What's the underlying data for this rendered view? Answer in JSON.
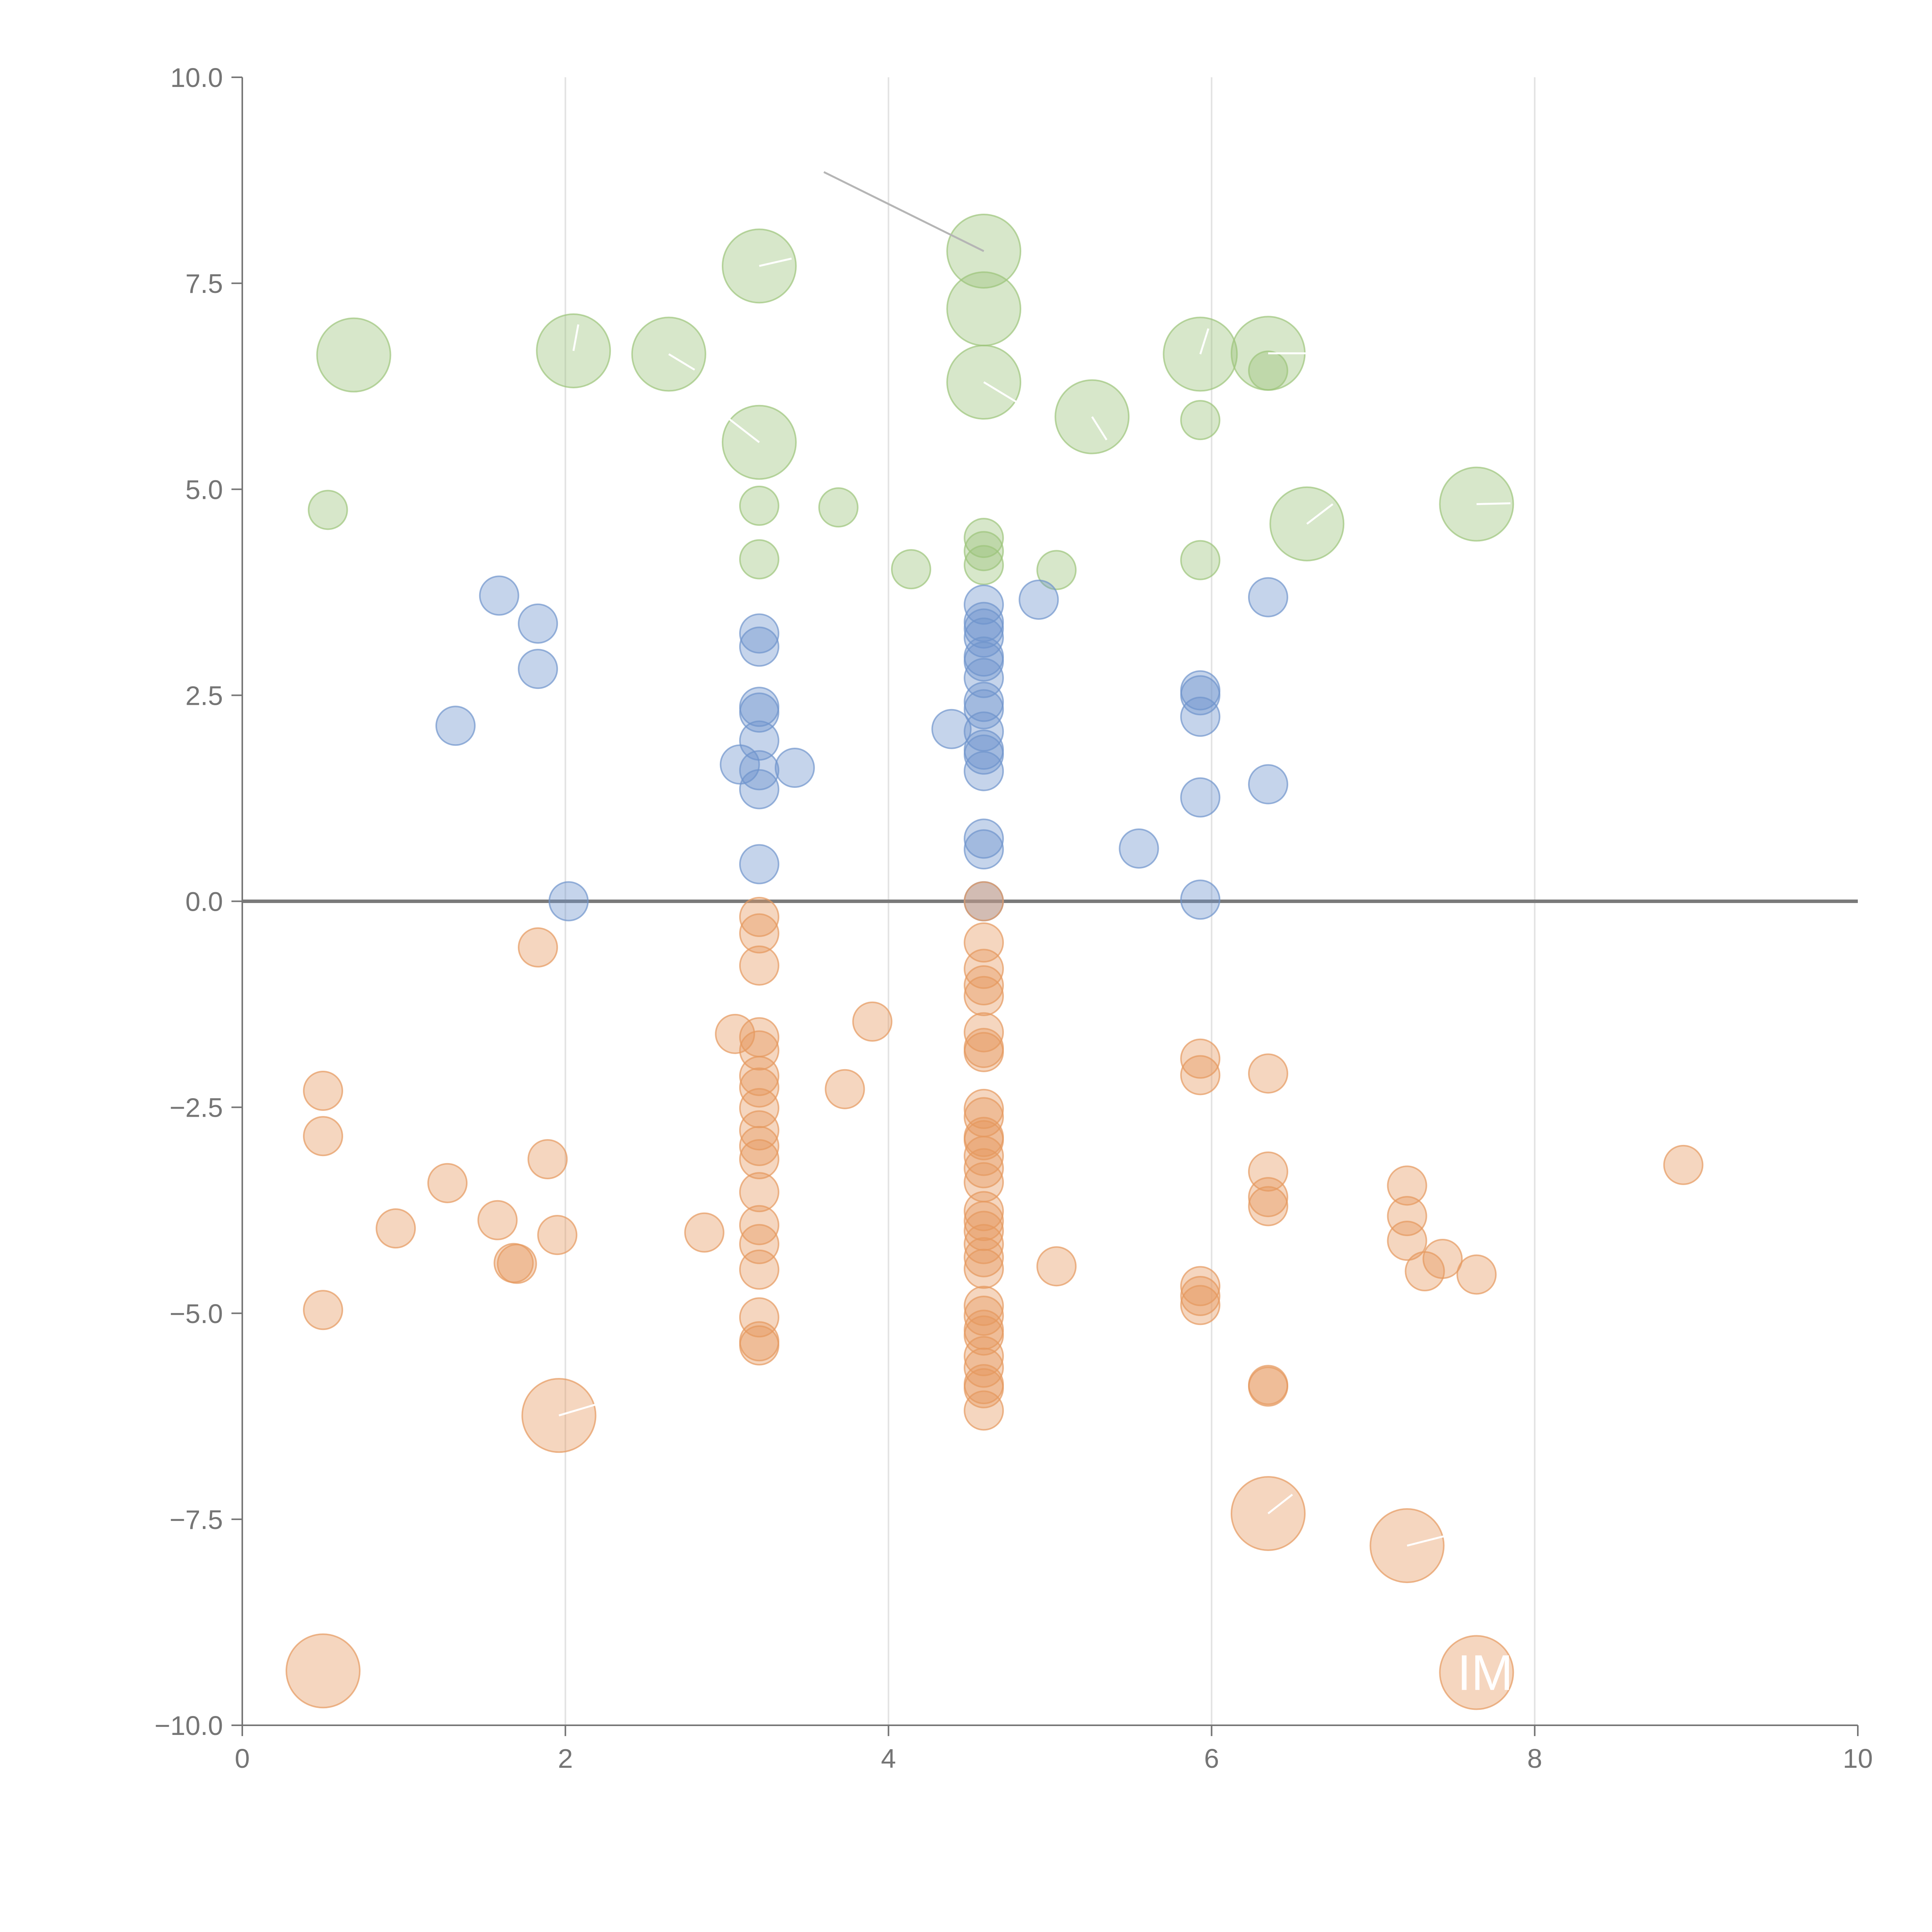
{
  "chart_data": {
    "type": "scatter",
    "title": "",
    "xlabel": "",
    "ylabel": "",
    "xlim": [
      0,
      10
    ],
    "ylim": [
      -10,
      10
    ],
    "x_ticks": [
      "0",
      "2",
      "4",
      "6",
      "8",
      "10"
    ],
    "y_ticks": [
      "10.0",
      "7.5",
      "5.0",
      "2.5",
      "0.0",
      "−2.5",
      "−5.0",
      "−7.5",
      "−10.0"
    ],
    "grid": "vertical",
    "zero_line": true,
    "colors": {
      "green": "#9cc47a",
      "blue": "#6f94cc",
      "orange": "#e5995e",
      "axis": "#757575",
      "leader": "#b5b5b5"
    },
    "series": [
      {
        "name": "green",
        "color": "#9cc47a",
        "points": [
          {
            "x": 0.69,
            "y": 6.63,
            "size": "large"
          },
          {
            "x": 2.05,
            "y": 6.68,
            "size": "large"
          },
          {
            "x": 2.64,
            "y": 6.64,
            "size": "large"
          },
          {
            "x": 3.2,
            "y": 7.71,
            "size": "large"
          },
          {
            "x": 3.2,
            "y": 5.57,
            "size": "large"
          },
          {
            "x": 4.59,
            "y": 7.89,
            "size": "large"
          },
          {
            "x": 4.59,
            "y": 7.19,
            "size": "large"
          },
          {
            "x": 4.59,
            "y": 6.3,
            "size": "large"
          },
          {
            "x": 5.26,
            "y": 5.88,
            "size": "large"
          },
          {
            "x": 5.93,
            "y": 6.64,
            "size": "large"
          },
          {
            "x": 6.35,
            "y": 6.65,
            "size": "large"
          },
          {
            "x": 6.59,
            "y": 4.58,
            "size": "large"
          },
          {
            "x": 7.64,
            "y": 4.82,
            "size": "large"
          },
          {
            "x": 0.53,
            "y": 4.75,
            "size": "small"
          },
          {
            "x": 3.2,
            "y": 4.8,
            "size": "small"
          },
          {
            "x": 3.2,
            "y": 4.15,
            "size": "small"
          },
          {
            "x": 3.69,
            "y": 4.78,
            "size": "small"
          },
          {
            "x": 4.14,
            "y": 4.03,
            "size": "small"
          },
          {
            "x": 4.59,
            "y": 4.41,
            "size": "small"
          },
          {
            "x": 4.59,
            "y": 4.25,
            "size": "small"
          },
          {
            "x": 4.59,
            "y": 4.08,
            "size": "small"
          },
          {
            "x": 5.04,
            "y": 4.02,
            "size": "small"
          },
          {
            "x": 5.93,
            "y": 5.84,
            "size": "small"
          },
          {
            "x": 5.93,
            "y": 4.14,
            "size": "small"
          },
          {
            "x": 6.35,
            "y": 6.44,
            "size": "small"
          }
        ]
      },
      {
        "name": "blue",
        "color": "#6f94cc",
        "points": [
          {
            "x": 1.59,
            "y": 3.71,
            "size": "small"
          },
          {
            "x": 1.83,
            "y": 3.37,
            "size": "small"
          },
          {
            "x": 1.83,
            "y": 2.82,
            "size": "small"
          },
          {
            "x": 1.32,
            "y": 2.13,
            "size": "small"
          },
          {
            "x": 2.02,
            "y": 0.0,
            "size": "small"
          },
          {
            "x": 3.2,
            "y": 3.25,
            "size": "small"
          },
          {
            "x": 3.2,
            "y": 3.09,
            "size": "small"
          },
          {
            "x": 3.2,
            "y": 2.36,
            "size": "small"
          },
          {
            "x": 3.2,
            "y": 2.29,
            "size": "small"
          },
          {
            "x": 3.2,
            "y": 1.95,
            "size": "small"
          },
          {
            "x": 3.08,
            "y": 1.66,
            "size": "small"
          },
          {
            "x": 3.2,
            "y": 1.59,
            "size": "small"
          },
          {
            "x": 3.42,
            "y": 1.62,
            "size": "small"
          },
          {
            "x": 3.2,
            "y": 1.36,
            "size": "small"
          },
          {
            "x": 3.2,
            "y": 0.45,
            "size": "small"
          },
          {
            "x": 4.39,
            "y": 2.09,
            "size": "small"
          },
          {
            "x": 4.59,
            "y": 3.6,
            "size": "small"
          },
          {
            "x": 4.59,
            "y": 3.39,
            "size": "small"
          },
          {
            "x": 4.59,
            "y": 3.31,
            "size": "small"
          },
          {
            "x": 4.59,
            "y": 3.2,
            "size": "small"
          },
          {
            "x": 4.59,
            "y": 2.97,
            "size": "small"
          },
          {
            "x": 4.59,
            "y": 2.91,
            "size": "small"
          },
          {
            "x": 4.59,
            "y": 2.71,
            "size": "small"
          },
          {
            "x": 4.59,
            "y": 2.42,
            "size": "small"
          },
          {
            "x": 4.59,
            "y": 2.33,
            "size": "small"
          },
          {
            "x": 4.59,
            "y": 2.06,
            "size": "small"
          },
          {
            "x": 4.59,
            "y": 1.84,
            "size": "small"
          },
          {
            "x": 4.59,
            "y": 1.78,
            "size": "small"
          },
          {
            "x": 4.59,
            "y": 1.58,
            "size": "small"
          },
          {
            "x": 4.59,
            "y": 0.76,
            "size": "small"
          },
          {
            "x": 4.59,
            "y": 0.63,
            "size": "small"
          },
          {
            "x": 4.59,
            "y": 0.0,
            "size": "small"
          },
          {
            "x": 4.93,
            "y": 3.66,
            "size": "small"
          },
          {
            "x": 5.55,
            "y": 0.64,
            "size": "small"
          },
          {
            "x": 5.93,
            "y": 2.56,
            "size": "small"
          },
          {
            "x": 5.93,
            "y": 2.5,
            "size": "small"
          },
          {
            "x": 5.93,
            "y": 2.24,
            "size": "small"
          },
          {
            "x": 5.93,
            "y": 1.26,
            "size": "small"
          },
          {
            "x": 5.93,
            "y": 0.02,
            "size": "small"
          },
          {
            "x": 6.35,
            "y": 3.69,
            "size": "small"
          },
          {
            "x": 6.35,
            "y": 1.42,
            "size": "small"
          }
        ]
      },
      {
        "name": "orange",
        "color": "#e5995e",
        "points": [
          {
            "x": 0.5,
            "y": -9.34,
            "size": "large"
          },
          {
            "x": 1.96,
            "y": -6.24,
            "size": "large"
          },
          {
            "x": 6.35,
            "y": -7.43,
            "size": "large"
          },
          {
            "x": 7.21,
            "y": -7.82,
            "size": "large"
          },
          {
            "x": 7.64,
            "y": -9.36,
            "size": "large"
          },
          {
            "x": 0.5,
            "y": -2.3,
            "size": "small"
          },
          {
            "x": 0.5,
            "y": -2.85,
            "size": "small"
          },
          {
            "x": 0.5,
            "y": -4.96,
            "size": "small"
          },
          {
            "x": 0.95,
            "y": -3.97,
            "size": "small"
          },
          {
            "x": 1.27,
            "y": -3.42,
            "size": "small"
          },
          {
            "x": 1.58,
            "y": -3.87,
            "size": "small"
          },
          {
            "x": 1.68,
            "y": -4.39,
            "size": "small"
          },
          {
            "x": 1.7,
            "y": -4.4,
            "size": "small"
          },
          {
            "x": 1.83,
            "y": -0.56,
            "size": "small"
          },
          {
            "x": 1.89,
            "y": -3.13,
            "size": "small"
          },
          {
            "x": 1.95,
            "y": -4.05,
            "size": "small"
          },
          {
            "x": 2.86,
            "y": -4.02,
            "size": "small"
          },
          {
            "x": 3.05,
            "y": -1.61,
            "size": "small"
          },
          {
            "x": 3.2,
            "y": -0.19,
            "size": "small"
          },
          {
            "x": 3.2,
            "y": -0.39,
            "size": "small"
          },
          {
            "x": 3.2,
            "y": -0.78,
            "size": "small"
          },
          {
            "x": 3.2,
            "y": -1.65,
            "size": "small"
          },
          {
            "x": 3.2,
            "y": -1.81,
            "size": "small"
          },
          {
            "x": 3.2,
            "y": -2.12,
            "size": "small"
          },
          {
            "x": 3.2,
            "y": -2.26,
            "size": "small"
          },
          {
            "x": 3.2,
            "y": -2.51,
            "size": "small"
          },
          {
            "x": 3.2,
            "y": -2.78,
            "size": "small"
          },
          {
            "x": 3.2,
            "y": -2.97,
            "size": "small"
          },
          {
            "x": 3.2,
            "y": -3.13,
            "size": "small"
          },
          {
            "x": 3.2,
            "y": -3.53,
            "size": "small"
          },
          {
            "x": 3.2,
            "y": -3.93,
            "size": "small"
          },
          {
            "x": 3.2,
            "y": -4.16,
            "size": "small"
          },
          {
            "x": 3.2,
            "y": -4.47,
            "size": "small"
          },
          {
            "x": 3.2,
            "y": -5.05,
            "size": "small"
          },
          {
            "x": 3.2,
            "y": -5.34,
            "size": "small"
          },
          {
            "x": 3.2,
            "y": -5.39,
            "size": "small"
          },
          {
            "x": 3.73,
            "y": -2.28,
            "size": "small"
          },
          {
            "x": 3.9,
            "y": -1.46,
            "size": "small"
          },
          {
            "x": 4.59,
            "y": 0.0,
            "size": "small"
          },
          {
            "x": 4.59,
            "y": -0.5,
            "size": "small"
          },
          {
            "x": 4.59,
            "y": -0.82,
            "size": "small"
          },
          {
            "x": 4.59,
            "y": -1.02,
            "size": "small"
          },
          {
            "x": 4.59,
            "y": -1.15,
            "size": "small"
          },
          {
            "x": 4.59,
            "y": -1.59,
            "size": "small"
          },
          {
            "x": 4.59,
            "y": -1.78,
            "size": "small"
          },
          {
            "x": 4.59,
            "y": -1.83,
            "size": "small"
          },
          {
            "x": 4.59,
            "y": -2.52,
            "size": "small"
          },
          {
            "x": 4.59,
            "y": -2.62,
            "size": "small"
          },
          {
            "x": 4.59,
            "y": -2.86,
            "size": "small"
          },
          {
            "x": 4.59,
            "y": -2.9,
            "size": "small"
          },
          {
            "x": 4.59,
            "y": -3.09,
            "size": "small"
          },
          {
            "x": 4.59,
            "y": -3.24,
            "size": "small"
          },
          {
            "x": 4.59,
            "y": -3.41,
            "size": "small"
          },
          {
            "x": 4.59,
            "y": -3.76,
            "size": "small"
          },
          {
            "x": 4.59,
            "y": -3.88,
            "size": "small"
          },
          {
            "x": 4.59,
            "y": -4.0,
            "size": "small"
          },
          {
            "x": 4.59,
            "y": -4.16,
            "size": "small"
          },
          {
            "x": 4.59,
            "y": -4.32,
            "size": "small"
          },
          {
            "x": 4.59,
            "y": -4.46,
            "size": "small"
          },
          {
            "x": 4.59,
            "y": -4.91,
            "size": "small"
          },
          {
            "x": 4.59,
            "y": -5.03,
            "size": "small"
          },
          {
            "x": 4.59,
            "y": -5.2,
            "size": "small"
          },
          {
            "x": 4.59,
            "y": -5.27,
            "size": "small"
          },
          {
            "x": 4.59,
            "y": -5.52,
            "size": "small"
          },
          {
            "x": 4.59,
            "y": -5.66,
            "size": "small"
          },
          {
            "x": 4.59,
            "y": -5.86,
            "size": "small"
          },
          {
            "x": 4.59,
            "y": -5.91,
            "size": "small"
          },
          {
            "x": 4.59,
            "y": -6.18,
            "size": "small"
          },
          {
            "x": 5.04,
            "y": -4.43,
            "size": "small"
          },
          {
            "x": 5.93,
            "y": -1.91,
            "size": "small"
          },
          {
            "x": 5.93,
            "y": -2.11,
            "size": "small"
          },
          {
            "x": 5.93,
            "y": -4.67,
            "size": "small"
          },
          {
            "x": 5.93,
            "y": -4.79,
            "size": "small"
          },
          {
            "x": 5.93,
            "y": -4.9,
            "size": "small"
          },
          {
            "x": 6.35,
            "y": -2.09,
            "size": "small"
          },
          {
            "x": 6.35,
            "y": -3.28,
            "size": "small"
          },
          {
            "x": 6.35,
            "y": -3.59,
            "size": "small"
          },
          {
            "x": 6.35,
            "y": -3.7,
            "size": "small"
          },
          {
            "x": 6.35,
            "y": -5.87,
            "size": "small"
          },
          {
            "x": 6.35,
            "y": -5.89,
            "size": "small"
          },
          {
            "x": 7.21,
            "y": -3.45,
            "size": "small"
          },
          {
            "x": 7.21,
            "y": -3.82,
            "size": "small"
          },
          {
            "x": 7.21,
            "y": -4.12,
            "size": "small"
          },
          {
            "x": 7.32,
            "y": -4.49,
            "size": "small"
          },
          {
            "x": 7.43,
            "y": -4.34,
            "size": "small"
          },
          {
            "x": 7.64,
            "y": -4.53,
            "size": "small"
          },
          {
            "x": 8.92,
            "y": -3.2,
            "size": "small"
          }
        ]
      }
    ],
    "annotations": [
      {
        "text": "IM",
        "x": 7.64,
        "y": -9.36
      }
    ]
  }
}
